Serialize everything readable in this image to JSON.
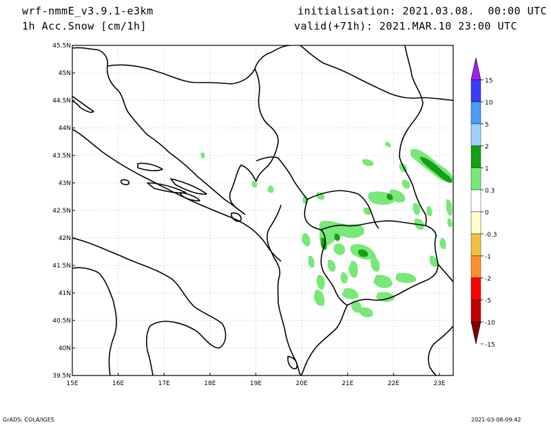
{
  "header": {
    "model": "wrf-nmmE_v3.9.1-e3km",
    "variable": "1h Acc.Snow [cm/1h]",
    "initialisation": "initialisation: 2021.03.08.  00:00 UTC",
    "valid": "valid(+71h): 2021.MAR.10 23:00 UTC"
  },
  "axes": {
    "lat_labels": [
      "45.5N",
      "45N",
      "44.5N",
      "44N",
      "43.5N",
      "43N",
      "42.5N",
      "42N",
      "41.5N",
      "41N",
      "40.5N",
      "40N",
      "39.5N"
    ],
    "lon_labels": [
      "15E",
      "16E",
      "17E",
      "18E",
      "19E",
      "20E",
      "21E",
      "22E",
      "23E"
    ],
    "lat_range": [
      39.5,
      45.5
    ],
    "lon_range": [
      15.0,
      23.3
    ]
  },
  "colorbar": {
    "labels": [
      "15",
      "10",
      "5",
      "2",
      "1",
      "0.3",
      "0",
      "-0.3",
      "-1",
      "-2",
      "-5",
      "-10",
      "-15"
    ],
    "colors": [
      "#a020f0",
      "#3c3cff",
      "#4c9cf0",
      "#a0d0ff",
      "#14a014",
      "#78e878",
      "#ffffff",
      "#ffffd0",
      "#f0c040",
      "#ff9030",
      "#ff0000",
      "#c00000",
      "#800000"
    ]
  },
  "colors": {
    "snow_light": "#78e878",
    "snow_mid": "#14a014",
    "border": "#000000",
    "grid": "#aaaaaa"
  },
  "footer": {
    "left": "GrADS: COLA/IGES",
    "right": "2021-03-08-09:42"
  }
}
